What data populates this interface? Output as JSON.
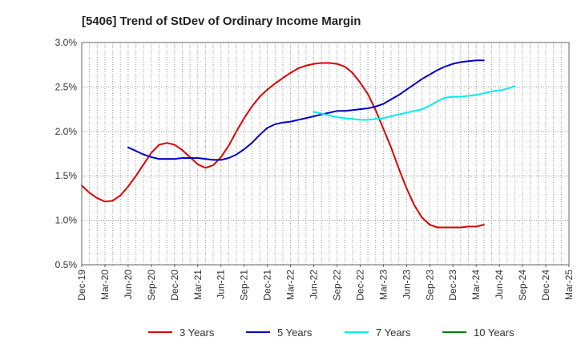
{
  "chart_data": {
    "type": "line",
    "title": "[5406]  Trend of StDev of Ordinary Income Margin",
    "xlabel": "",
    "ylabel": "",
    "x_ticks": [
      "Dec-19",
      "Mar-20",
      "Jun-20",
      "Sep-20",
      "Dec-20",
      "Mar-21",
      "Jun-21",
      "Sep-21",
      "Dec-21",
      "Mar-22",
      "Jun-22",
      "Sep-22",
      "Dec-22",
      "Mar-23",
      "Jun-23",
      "Sep-23",
      "Dec-23",
      "Mar-24",
      "Jun-24",
      "Sep-24",
      "Dec-24",
      "Mar-25"
    ],
    "y_ticks": [
      "0.5%",
      "1.0%",
      "1.5%",
      "2.0%",
      "2.5%",
      "3.0%"
    ],
    "ylim": [
      0.5,
      3.0
    ],
    "grid": "on",
    "legend_position": "bottom",
    "series": [
      {
        "name": "3 Years",
        "color": "#dd0000",
        "start_index": 0,
        "values": [
          1.39,
          1.31,
          1.25,
          1.21,
          1.22,
          1.28,
          1.38,
          1.5,
          1.63,
          1.76,
          1.85,
          1.87,
          1.85,
          1.79,
          1.71,
          1.63,
          1.59,
          1.62,
          1.71,
          1.84,
          2.0,
          2.15,
          2.28,
          2.39,
          2.47,
          2.54,
          2.6,
          2.66,
          2.71,
          2.74,
          2.76,
          2.77,
          2.77,
          2.76,
          2.73,
          2.66,
          2.55,
          2.42,
          2.24,
          2.03,
          1.82,
          1.58,
          1.36,
          1.17,
          1.03,
          0.95,
          0.92,
          0.92,
          0.92,
          0.92,
          0.93,
          0.93,
          0.95
        ]
      },
      {
        "name": "5 Years",
        "color": "#0000cc",
        "start_index": 6,
        "values": [
          1.82,
          1.78,
          1.74,
          1.71,
          1.69,
          1.69,
          1.69,
          1.7,
          1.7,
          1.7,
          1.69,
          1.68,
          1.68,
          1.7,
          1.74,
          1.8,
          1.87,
          1.96,
          2.04,
          2.08,
          2.1,
          2.11,
          2.13,
          2.15,
          2.17,
          2.19,
          2.21,
          2.23,
          2.23,
          2.24,
          2.25,
          2.26,
          2.28,
          2.31,
          2.36,
          2.41,
          2.47,
          2.53,
          2.59,
          2.64,
          2.69,
          2.73,
          2.76,
          2.78,
          2.79,
          2.8,
          2.8
        ]
      },
      {
        "name": "7 Years",
        "color": "#00eeee",
        "start_index": 30,
        "values": [
          2.22,
          2.2,
          2.18,
          2.16,
          2.15,
          2.14,
          2.13,
          2.13,
          2.14,
          2.15,
          2.17,
          2.19,
          2.21,
          2.23,
          2.25,
          2.29,
          2.34,
          2.38,
          2.39,
          2.39,
          2.4,
          2.41,
          2.43,
          2.45,
          2.46,
          2.48,
          2.51
        ]
      },
      {
        "name": "10 Years",
        "color": "#008000",
        "start_index": 0,
        "values": []
      }
    ]
  }
}
